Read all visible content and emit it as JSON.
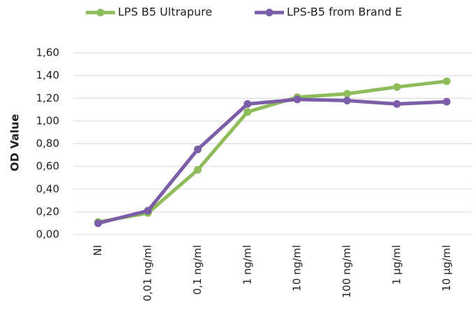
{
  "chart_data": {
    "type": "line",
    "y_label": "OD Value",
    "categories": [
      "NI",
      "0,01 ng/ml",
      "0,1 ng/ml",
      "1 ng/ml",
      "10 ng/ml",
      "100 ng/ml",
      "1 µg/ml",
      "10 µg/ml"
    ],
    "series": [
      {
        "name": "LPS B5 Ultrapure",
        "color": "#8fbc5a",
        "values": [
          0.11,
          0.19,
          0.57,
          1.08,
          1.21,
          1.24,
          1.3,
          1.35
        ]
      },
      {
        "name": "LPS-B5 from Brand E",
        "color": "#7b5ea7",
        "values": [
          0.1,
          0.21,
          0.75,
          1.15,
          1.19,
          1.18,
          1.15,
          1.17
        ]
      }
    ],
    "ylim": [
      0,
      1.6
    ],
    "yticks": [
      {
        "value": 0,
        "label": "0,00"
      },
      {
        "value": 0.2,
        "label": "0,20"
      },
      {
        "value": 0.4,
        "label": "0,40"
      },
      {
        "value": 0.6,
        "label": "0,60"
      },
      {
        "value": 0.8,
        "label": "0,80"
      },
      {
        "value": 1.0,
        "label": "1,00"
      },
      {
        "value": 1.2,
        "label": "1,20"
      },
      {
        "value": 1.4,
        "label": "1,40"
      },
      {
        "value": 1.6,
        "label": "1,60"
      }
    ],
    "grid": true,
    "legend": "top"
  }
}
